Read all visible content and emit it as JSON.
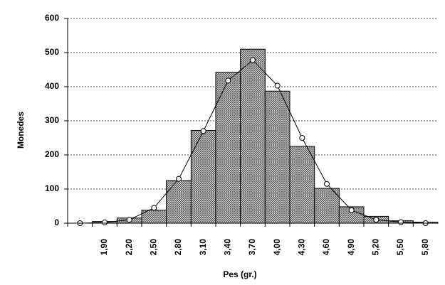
{
  "chart_data": {
    "type": "bar",
    "x_label": "Pes (gr.)",
    "y_label": "Monedes",
    "categories": [
      null,
      "1,90",
      "2,20",
      "2,50",
      "2,80",
      "3,10",
      "3,40",
      "3,70",
      "4,00",
      "4,30",
      "4,60",
      "4,90",
      "5,20",
      "5,50",
      "5,80"
    ],
    "series": [
      {
        "type": "bar",
        "color": "#555555",
        "values": [
          0,
          5,
          15,
          38,
          125,
          272,
          442,
          510,
          387,
          225,
          102,
          48,
          20,
          7,
          3
        ]
      },
      {
        "type": "line",
        "color": "#000000",
        "values": [
          0,
          2,
          10,
          45,
          130,
          270,
          418,
          478,
          403,
          250,
          115,
          38,
          10,
          3,
          0
        ]
      }
    ],
    "ylim": [
      0,
      600
    ],
    "yticks": [
      0,
      100,
      200,
      300,
      400,
      500,
      600
    ],
    "grid": true
  }
}
